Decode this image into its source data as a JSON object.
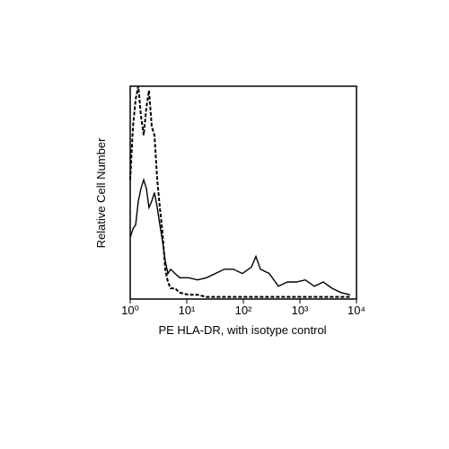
{
  "chart_data": {
    "type": "line",
    "xlabel": "PE HLA-DR, with isotype control",
    "ylabel": "Relative Cell Number",
    "xscale": "log",
    "xlim": [
      1,
      10000
    ],
    "ylim": [
      0,
      100
    ],
    "xticks": [
      {
        "value": 1,
        "label": "10⁰"
      },
      {
        "value": 10,
        "label": "10¹"
      },
      {
        "value": 100,
        "label": "10²"
      },
      {
        "value": 1000,
        "label": "10³"
      },
      {
        "value": 10000,
        "label": "10⁴"
      }
    ],
    "x": [
      1,
      1.12,
      1.25,
      1.39,
      1.55,
      1.73,
      1.93,
      2.15,
      2.4,
      2.68,
      3.0,
      3.34,
      3.73,
      4.16,
      4.64,
      5.18,
      6.2,
      7.5,
      10.8,
      15.5,
      22.3,
      32,
      46,
      67,
      96,
      139,
      167,
      200,
      288,
      416,
      600,
      865,
      1245,
      1795,
      2590,
      3725,
      5370,
      7740
    ],
    "series": [
      {
        "color": "#000000",
        "style": "solid",
        "values": [
          29,
          33,
          35,
          46,
          52,
          56,
          52,
          43,
          46,
          50,
          43,
          35,
          27,
          18,
          12,
          14,
          12,
          10,
          10,
          9,
          10,
          12,
          14,
          14,
          12,
          15,
          20,
          14,
          12,
          6,
          8,
          8,
          9,
          6,
          8,
          5,
          3,
          2
        ]
      },
      {
        "color": "#000000",
        "style": "dashed",
        "values": [
          56,
          81,
          94,
          100,
          86,
          77,
          90,
          98,
          81,
          77,
          56,
          43,
          31,
          14,
          8,
          5,
          5,
          3,
          2,
          2,
          1,
          1,
          1,
          1,
          1,
          1,
          1,
          1,
          1,
          1,
          1,
          1,
          1,
          1,
          1,
          1,
          1,
          1
        ]
      }
    ]
  }
}
